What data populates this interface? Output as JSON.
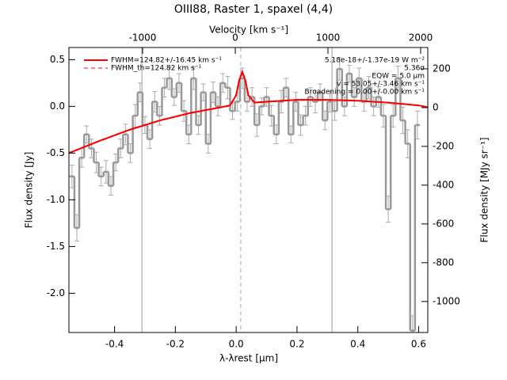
{
  "chart_data": {
    "type": "line",
    "title": "OIII88, Raster 1, spaxel (4,4)",
    "xlabel": "λ-λrest [μm]",
    "ylabel": "Flux density [Jy]",
    "x2label": "Velocity [km s⁻¹]",
    "y2label": "Flux density [MJy sr⁻¹]",
    "color": "#999999",
    "x": [
      -0.54,
      -0.524,
      -0.508,
      -0.492,
      -0.476,
      -0.46,
      -0.444,
      -0.428,
      -0.412,
      -0.396,
      -0.38,
      -0.364,
      -0.348,
      -0.332,
      -0.316,
      -0.3,
      -0.284,
      -0.268,
      -0.252,
      -0.236,
      -0.22,
      -0.204,
      -0.188,
      -0.172,
      -0.156,
      -0.14,
      -0.124,
      -0.108,
      -0.092,
      -0.076,
      -0.06,
      -0.044,
      -0.028,
      -0.012,
      0.004,
      0.02,
      0.036,
      0.052,
      0.068,
      0.084,
      0.1,
      0.116,
      0.132,
      0.148,
      0.164,
      0.18,
      0.196,
      0.212,
      0.228,
      0.244,
      0.26,
      0.276,
      0.292,
      0.308,
      0.324,
      0.34,
      0.356,
      0.372,
      0.388,
      0.404,
      0.42,
      0.436,
      0.452,
      0.468,
      0.484,
      0.5,
      0.516,
      0.532,
      0.548,
      0.564,
      0.58,
      0.596
    ],
    "values": [
      -0.75,
      -1.3,
      -0.55,
      -0.3,
      -0.45,
      -0.6,
      -0.75,
      -0.7,
      -0.85,
      -0.6,
      -0.45,
      -0.3,
      -0.5,
      -0.1,
      0.15,
      -0.2,
      -0.35,
      0.05,
      -0.1,
      0.2,
      0.3,
      0.1,
      0.25,
      -0.05,
      -0.3,
      0.3,
      -0.2,
      0.15,
      -0.4,
      0.15,
      0.0,
      0.25,
      0.2,
      -0.05,
      0.05,
      0.3,
      0.05,
      0.1,
      -0.2,
      0.0,
      0.1,
      -0.1,
      -0.3,
      0.05,
      0.2,
      -0.3,
      0.05,
      -0.2,
      -0.1,
      0.1,
      0.05,
      0.15,
      -0.15,
      0.05,
      -0.05,
      0.4,
      0.0,
      0.35,
      0.1,
      0.3,
      0.05,
      0.2,
      0.0,
      0.1,
      -0.1,
      -1.1,
      -0.1,
      0.3,
      -0.15,
      -0.4,
      -2.4,
      -0.2
    ],
    "errors": [
      0.12,
      0.14,
      0.1,
      0.09,
      0.1,
      0.11,
      0.1,
      0.12,
      0.1,
      0.09,
      0.1,
      0.11,
      0.1,
      0.12,
      0.1,
      0.09,
      0.1,
      0.11,
      0.1,
      0.1,
      0.12,
      0.09,
      0.1,
      0.11,
      0.1,
      0.12,
      0.1,
      0.09,
      0.1,
      0.11,
      0.1,
      0.1,
      0.12,
      0.09,
      0.1,
      0.11,
      0.1,
      0.1,
      0.12,
      0.09,
      0.1,
      0.11,
      0.1,
      0.12,
      0.1,
      0.09,
      0.1,
      0.11,
      0.1,
      0.1,
      0.12,
      0.09,
      0.1,
      0.11,
      0.1,
      0.12,
      0.1,
      0.09,
      0.1,
      0.11,
      0.1,
      0.12,
      0.1,
      0.11,
      0.12,
      0.14,
      0.12,
      0.13,
      0.14,
      0.15,
      0.16,
      0.15
    ],
    "series": [
      {
        "name": "FWHM=124.82+/-16.45 km s⁻¹",
        "color": "#ff0000",
        "dashed": false,
        "x": [
          -0.55,
          -0.45,
          -0.35,
          -0.25,
          -0.15,
          -0.05,
          -0.02,
          0,
          0.01,
          0.02,
          0.03,
          0.04,
          0.06,
          0.1,
          0.2,
          0.3,
          0.4,
          0.5,
          0.6,
          0.63
        ],
        "values": [
          -0.5,
          -0.37,
          -0.25,
          -0.15,
          -0.07,
          -0.01,
          0.01,
          0.12,
          0.28,
          0.37,
          0.28,
          0.12,
          0.04,
          0.05,
          0.07,
          0.07,
          0.06,
          0.04,
          0.01,
          -0.01
        ]
      },
      {
        "name": "FWHM_th=124.82 km s⁻¹",
        "color": "#ff0000",
        "dashed": true,
        "x": [
          -0.55,
          -0.45,
          -0.35,
          -0.25,
          -0.15,
          -0.05,
          -0.02,
          0,
          0.01,
          0.02,
          0.03,
          0.04,
          0.06,
          0.1,
          0.2,
          0.3,
          0.4,
          0.5,
          0.6,
          0.63
        ],
        "values": [
          -0.5,
          -0.37,
          -0.25,
          -0.15,
          -0.07,
          -0.01,
          0.01,
          0.12,
          0.28,
          0.37,
          0.28,
          0.12,
          0.04,
          0.05,
          0.07,
          0.07,
          0.06,
          0.04,
          0.01,
          -0.01
        ]
      }
    ],
    "vlines": [
      -0.31,
      0.315
    ],
    "center_line": 0.015,
    "annotations": [
      "5.18e-18+/-1.37e-19 W m⁻²",
      "5.36σ",
      "EQW = 5.0 μm",
      "v = 53.05+/-3.46 km s⁻¹",
      "Broadening = 0.00+/-0.00 km s⁻¹"
    ],
    "xlim": [
      -0.55,
      0.63
    ],
    "xticks": [
      -0.4,
      -0.2,
      {
        "value": 0,
        "label": "0.0"
      },
      0.2,
      0.4,
      0.6
    ],
    "ylim": [
      -2.42,
      0.63
    ],
    "yticks": [
      0.5,
      {
        "value": 0,
        "label": "0.0"
      },
      -0.5,
      {
        "value": -1,
        "label": "-1.0"
      },
      -1.5,
      {
        "value": -2,
        "label": "-2.0"
      }
    ],
    "x2lim": [
      -1795,
      2077
    ],
    "x2ticks": [
      -1000,
      0,
      1000,
      2000
    ],
    "y2lim": [
      -1160,
      310
    ],
    "y2ticks": [
      200,
      0,
      -200,
      -400,
      -600,
      -800,
      -1000
    ]
  }
}
